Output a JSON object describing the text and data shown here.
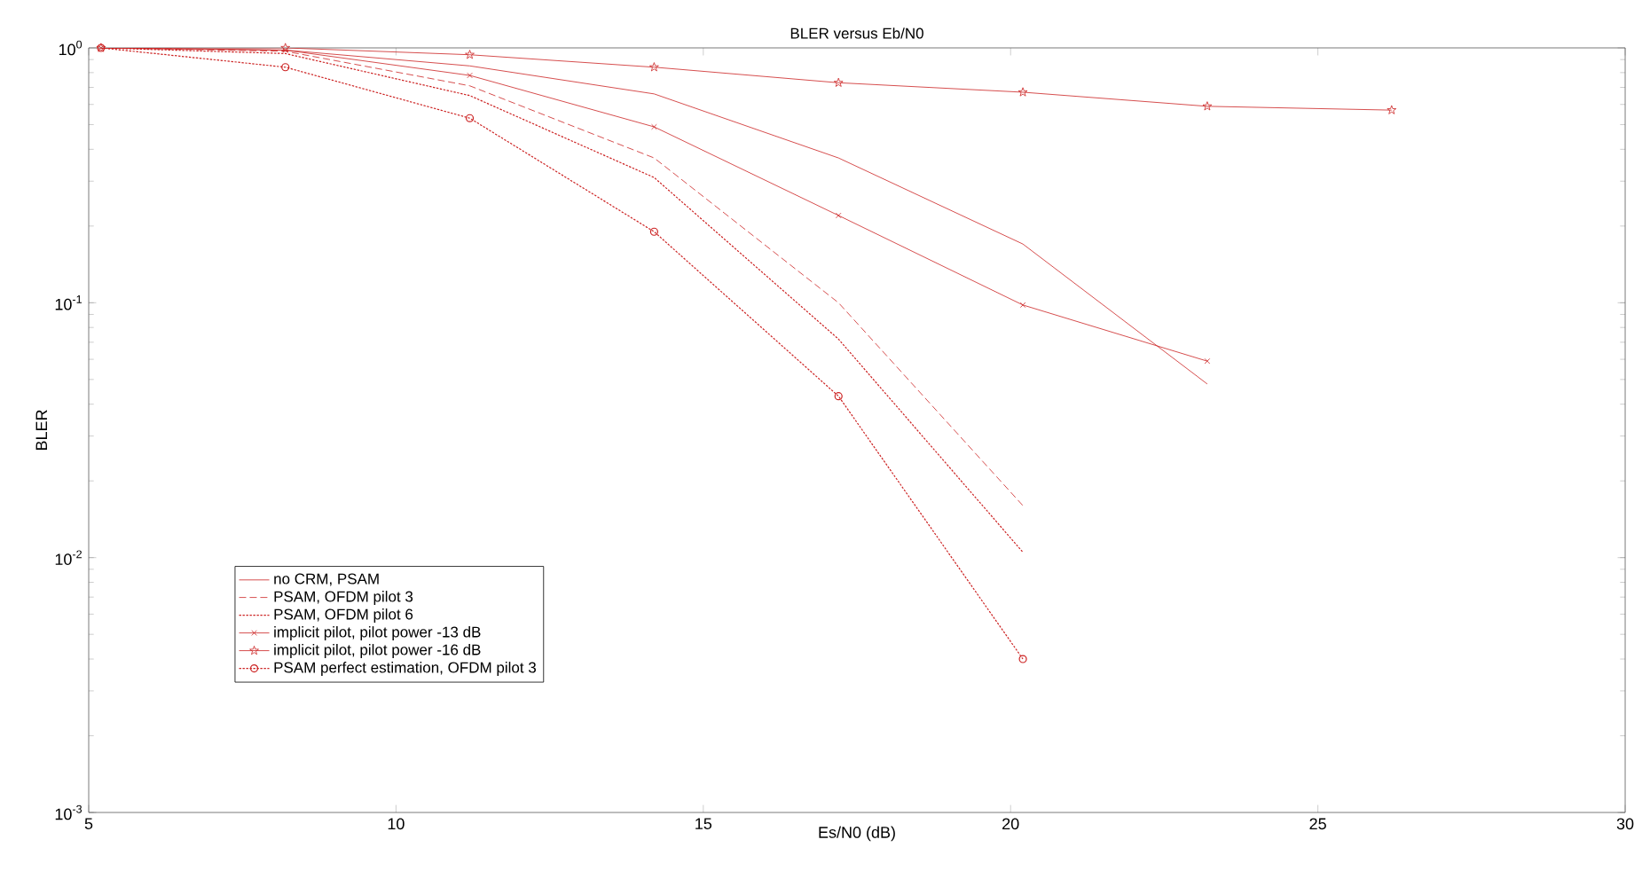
{
  "chart_data": {
    "type": "line",
    "title": "BLER versus Eb/N0",
    "xlabel": "Es/N0 (dB)",
    "ylabel": "BLER",
    "log": "y",
    "xlim": [
      5,
      30
    ],
    "xticks": [
      5,
      10,
      15,
      20,
      25,
      30
    ],
    "ylim": [
      0.001,
      1
    ],
    "yticks": [
      {
        "value": 0.001,
        "label": "10$^{-3}$"
      },
      {
        "value": 0.01,
        "label": "10$^{-2}$"
      },
      {
        "value": 0.1,
        "label": "10$^{-1}$"
      },
      {
        "value": 1,
        "label": "10$^{0}$"
      }
    ],
    "grid": false,
    "legend": "bottom left",
    "series": [
      {
        "name": "no CRM, PSAM",
        "color": "#cc2222",
        "line_style": "solid",
        "marker": "none",
        "x": [
          5.2,
          8.2,
          11.2,
          14.2,
          17.2,
          20.2,
          23.2
        ],
        "values": [
          1.0,
          0.98,
          0.85,
          0.66,
          0.37,
          0.17,
          0.048
        ]
      },
      {
        "name": "PSAM, OFDM pilot 3",
        "color": "#cc2222",
        "line_style": "dashed",
        "marker": "none",
        "x": [
          5.2,
          8.2,
          11.2,
          14.2,
          17.2,
          20.2
        ],
        "values": [
          1.0,
          0.97,
          0.71,
          0.37,
          0.1,
          0.016
        ]
      },
      {
        "name": "PSAM, OFDM pilot 6",
        "color": "#cc2222",
        "line_style": "dotted",
        "marker": "none",
        "x": [
          5.2,
          8.2,
          11.2,
          14.2,
          17.2,
          20.2
        ],
        "values": [
          1.0,
          0.95,
          0.65,
          0.31,
          0.072,
          0.0105
        ]
      },
      {
        "name": "implicit pilot, pilot power -13 dB",
        "color": "#cc2222",
        "line_style": "solid",
        "marker": "cross",
        "x": [
          5.2,
          8.2,
          11.2,
          14.2,
          17.2,
          20.2,
          23.2
        ],
        "values": [
          1.0,
          0.98,
          0.78,
          0.49,
          0.22,
          0.098,
          0.059
        ]
      },
      {
        "name": "implicit pilot, pilot power -16 dB",
        "color": "#cc2222",
        "line_style": "solid",
        "marker": "star",
        "x": [
          5.2,
          8.2,
          11.2,
          14.2,
          17.2,
          20.2,
          23.2,
          26.2
        ],
        "values": [
          1.0,
          1.0,
          0.94,
          0.84,
          0.73,
          0.67,
          0.59,
          0.57
        ]
      },
      {
        "name": "PSAM perfect estimation, OFDM pilot 3",
        "color": "#cc2222",
        "line_style": "dotted",
        "marker": "circle",
        "x": [
          5.2,
          8.2,
          11.2,
          14.2,
          17.2,
          20.2
        ],
        "values": [
          1.0,
          0.84,
          0.53,
          0.19,
          0.043,
          0.004
        ]
      }
    ]
  }
}
